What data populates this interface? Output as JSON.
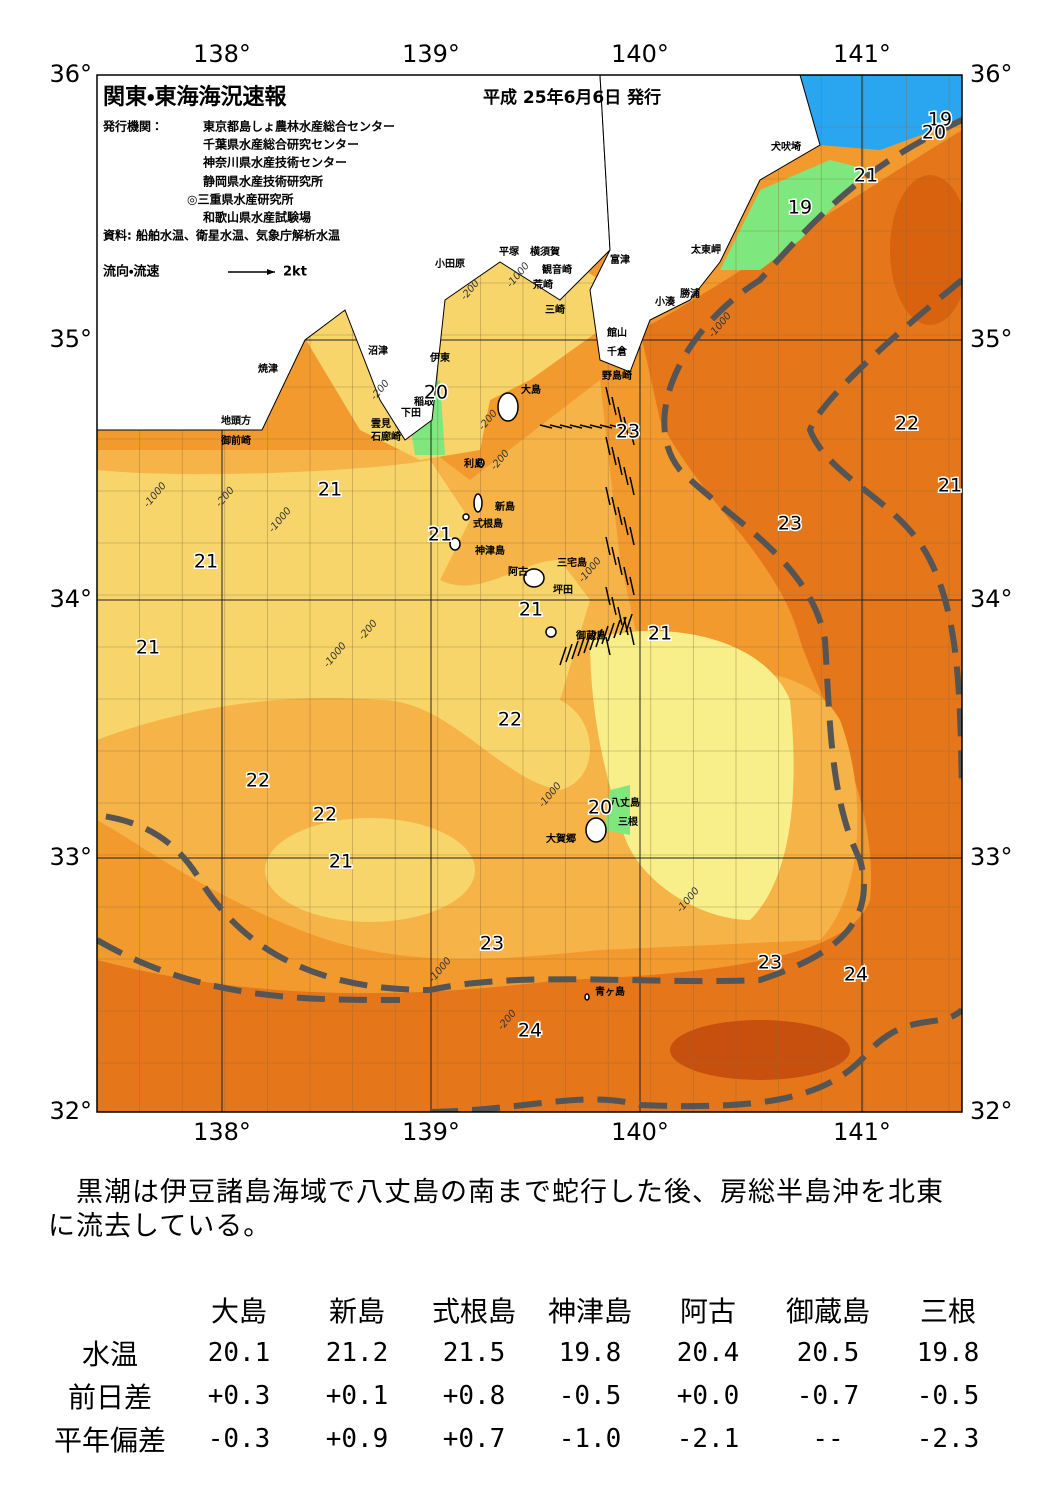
{
  "header": {
    "title": "関東・東海海況速報",
    "issue_date": "平成 25年6月6日 発行",
    "issuer_label": "発行機関：",
    "issuers": [
      "東京都島しょ農林水産総合センター",
      "千葉県水産総合研究センター",
      "神奈川県水産技術センター",
      "静岡県水産技術研究所",
      "◎三重県水産研究所",
      "和歌山県水産試験場"
    ],
    "source": "資料: 船舶水温、衛星水温、気象庁解析水温"
  },
  "legend": {
    "label": "流向・流速",
    "scale": "2kt"
  },
  "map": {
    "lon_labels": [
      "138°",
      "139°",
      "140°",
      "141°"
    ],
    "lat_labels": [
      "36°",
      "35°",
      "34°",
      "33°",
      "32°"
    ],
    "places": [
      "犬吠埼",
      "太東岬",
      "富津",
      "小湊",
      "勝浦",
      "館山",
      "千倉",
      "野島崎",
      "横須賀",
      "観音崎",
      "荒崎",
      "三崎",
      "平塚",
      "小田原",
      "沼津",
      "伊東",
      "焼津",
      "稲取",
      "下田",
      "雲見",
      "石廊崎",
      "地頭方",
      "御前崎",
      "大島",
      "利島",
      "新島",
      "式根島",
      "神津島",
      "三宅島",
      "阿古",
      "坪田",
      "御蔵島",
      "八丈島",
      "三根",
      "大賀郷",
      "青ヶ島"
    ],
    "contour_labels": [
      19,
      20,
      21,
      19,
      20,
      23,
      22,
      21,
      21,
      23,
      21,
      21,
      21,
      21,
      21,
      22,
      22,
      22,
      20,
      21,
      23,
      23,
      24,
      24
    ],
    "depth_labels": [
      "-200",
      "-1000",
      "-200",
      "-1000",
      "-200",
      "-1000",
      "-200",
      "-200",
      "-1000",
      "-200",
      "-1000",
      "-1000",
      "-1000",
      "-1000",
      "-200",
      "-1000"
    ]
  },
  "description": [
    "　黒潮は伊豆諸島海域で八丈島の南まで蛇行した後、房総半島沖を北東",
    "に流去している。"
  ],
  "table": {
    "columns": [
      "大島",
      "新島",
      "式根島",
      "神津島",
      "阿古",
      "御蔵島",
      "三根"
    ],
    "rows": [
      [
        "水温",
        "20.1",
        "21.2",
        "21.5",
        "19.8",
        "20.4",
        "20.5",
        "19.8"
      ],
      [
        "前日差",
        "+0.3",
        "+0.1",
        "+0.8",
        "-0.5",
        "+0.0",
        "-0.7",
        "-0.5"
      ],
      [
        "平年偏差",
        "-0.3",
        "+0.9",
        "+0.7",
        "-1.0",
        "-2.1",
        "--",
        "-2.3"
      ]
    ]
  }
}
